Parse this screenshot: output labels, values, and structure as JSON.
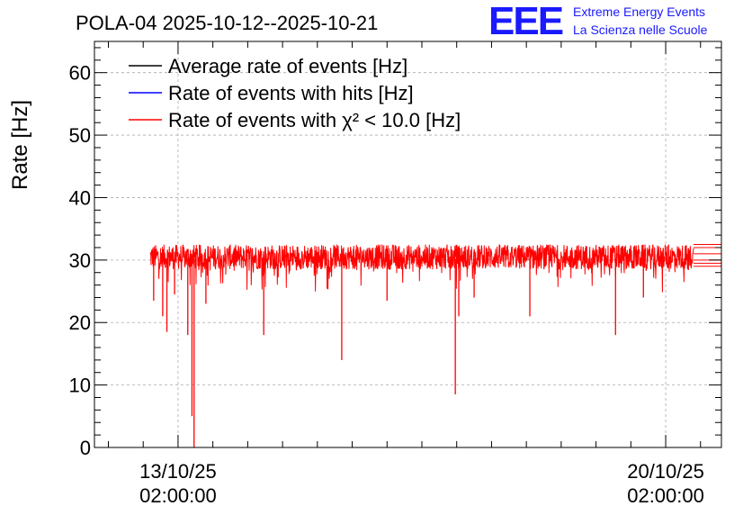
{
  "chart_data": {
    "type": "line",
    "title": "POLA-04 2025-10-12--2025-10-21",
    "ylabel": "Rate [Hz]",
    "xlabel": "",
    "ylim": [
      0,
      65
    ],
    "yticks": [
      0,
      10,
      20,
      30,
      40,
      50,
      60
    ],
    "xlim_days": [
      0,
      9
    ],
    "xticks": [
      {
        "day": 1.2,
        "date": "13/10/25",
        "time": "02:00:00"
      },
      {
        "day": 8.2,
        "date": "20/10/25",
        "time": "02:00:00"
      }
    ],
    "grid": true,
    "legend_position": "top-left",
    "series": [
      {
        "name": "Average rate of events [Hz]",
        "color": "#000000",
        "baseline": 30.2,
        "band": [
          28.5,
          32.5
        ]
      },
      {
        "name": "Rate of events with hits [Hz]",
        "color": "#0000ff",
        "baseline": 30.2,
        "band": [
          28.5,
          32.5
        ]
      },
      {
        "name": "Rate of events with χ² < 10.0 [Hz]",
        "color": "#ff0000",
        "baseline": 30.2,
        "band": [
          28.5,
          32.5
        ]
      }
    ],
    "data_start_day": 0.8,
    "data_end_day": 8.6,
    "dips": [
      {
        "day": 0.85,
        "value": 23.5
      },
      {
        "day": 0.98,
        "value": 21.0
      },
      {
        "day": 1.04,
        "value": 18.5
      },
      {
        "day": 1.15,
        "value": 24.5
      },
      {
        "day": 1.34,
        "value": 18.0
      },
      {
        "day": 1.4,
        "value": 5.0
      },
      {
        "day": 1.43,
        "value": 0.0
      },
      {
        "day": 1.6,
        "value": 23.0
      },
      {
        "day": 2.43,
        "value": 18.0
      },
      {
        "day": 3.55,
        "value": 14.0
      },
      {
        "day": 4.2,
        "value": 23.5
      },
      {
        "day": 5.18,
        "value": 8.5
      },
      {
        "day": 5.23,
        "value": 21.0
      },
      {
        "day": 5.45,
        "value": 24.0
      },
      {
        "day": 6.25,
        "value": 21.0
      },
      {
        "day": 7.48,
        "value": 18.0
      },
      {
        "day": 7.88,
        "value": 24.0
      }
    ],
    "flat_lines_end": [
      32.5,
      32.0,
      31.0,
      30.0,
      29.5,
      29.0
    ]
  },
  "logo": {
    "mark": "EEE",
    "line1": "Extreme Energy Events",
    "line2": "La Scienza nelle Scuole"
  }
}
